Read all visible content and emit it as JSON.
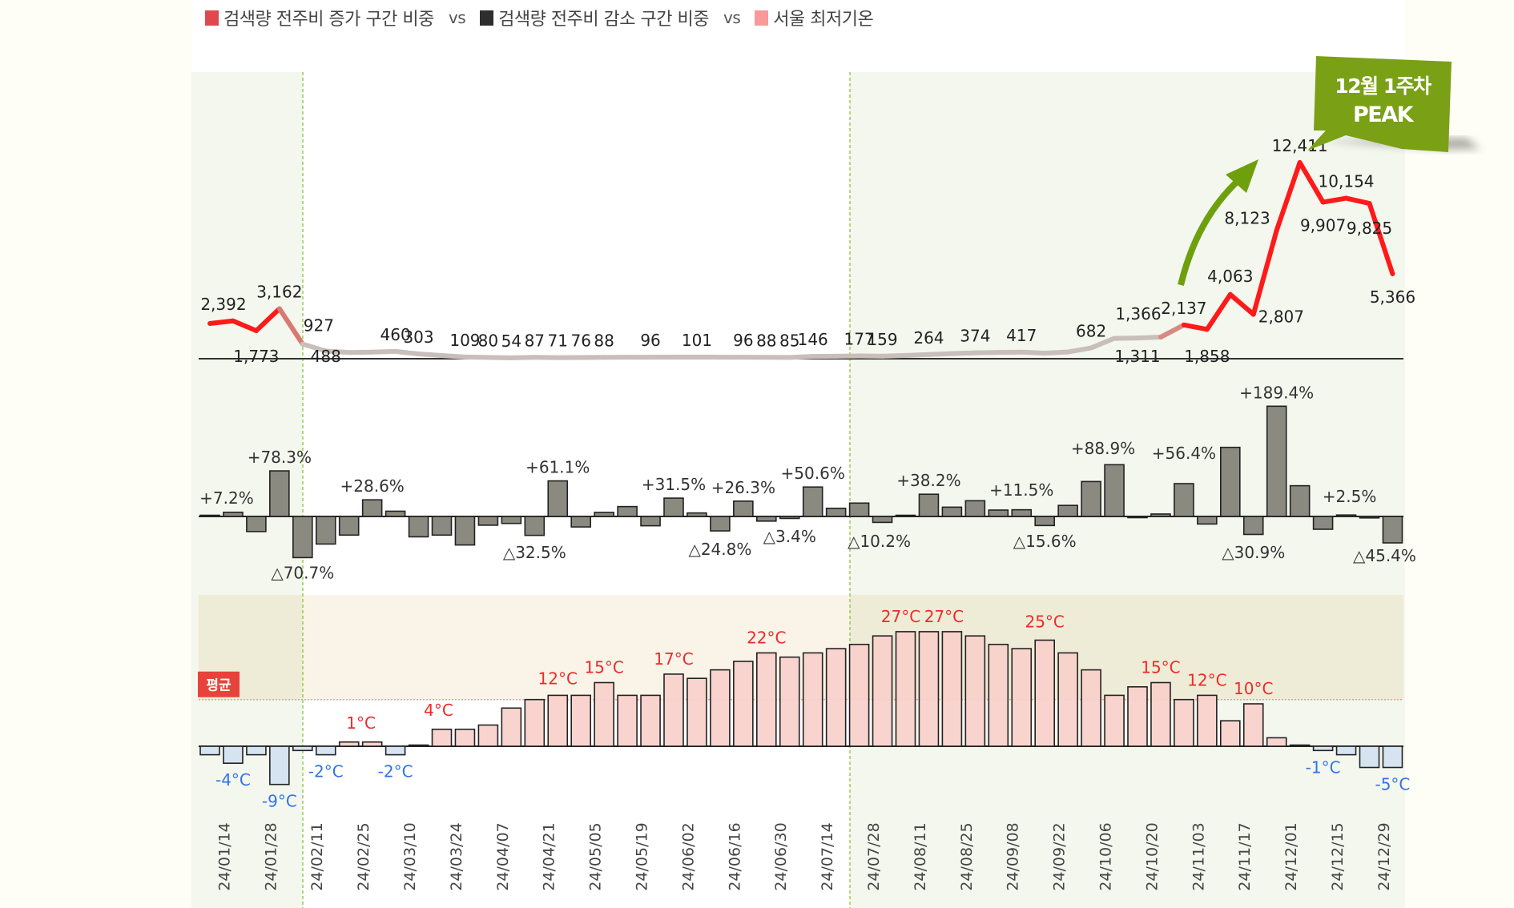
{
  "legend": {
    "items": [
      {
        "label": "검색량 전주비 증가 구간 비중",
        "color": "#e0484f"
      },
      {
        "label": "검색량 전주비 감소 구간 비중",
        "color": "#2e2e2e"
      },
      {
        "label": "서울 최저기온",
        "color": "#f8999a"
      }
    ],
    "separator": "vs"
  },
  "callout": {
    "line1": "12월 1주차",
    "line2": "PEAK",
    "color": "#7aa016"
  },
  "average_badge": "평균",
  "colors": {
    "rise_line": "#ff1a1a",
    "flat_line": "#c9bfba",
    "change_bar": "#8a8a80",
    "warm_bar": "#f9d0cb",
    "cold_bar": "#d3e2f2",
    "warm_label": "#ee2a2a",
    "cold_label": "#2f74e8",
    "shade": "#f4f7ee",
    "warm_band": "#f8f1e4",
    "guide": "#8fc23a"
  },
  "chart_data": [
    {
      "type": "line",
      "title": "검색량",
      "x": [
        "24/01/07",
        "24/01/14",
        "24/01/21",
        "24/01/28",
        "24/02/04",
        "24/02/11",
        "24/02/18",
        "24/02/25",
        "24/03/03",
        "24/03/10",
        "24/03/17",
        "24/03/24",
        "24/03/31",
        "24/04/07",
        "24/04/14",
        "24/04/21",
        "24/04/28",
        "24/05/05",
        "24/05/12",
        "24/05/19",
        "24/05/26",
        "24/06/02",
        "24/06/09",
        "24/06/16",
        "24/06/23",
        "24/06/30",
        "24/07/07",
        "24/07/14",
        "24/07/21",
        "24/07/28",
        "24/08/04",
        "24/08/11",
        "24/08/18",
        "24/08/25",
        "24/09/01",
        "24/09/08",
        "24/09/15",
        "24/09/22",
        "24/09/29",
        "24/10/06",
        "24/10/13",
        "24/10/20",
        "24/10/27",
        "24/11/03",
        "24/11/10",
        "24/11/17",
        "24/11/24",
        "24/12/01",
        "24/12/08",
        "24/12/15",
        "24/12/22",
        "24/12/29"
      ],
      "values": [
        2231,
        2392,
        1773,
        3162,
        927,
        488,
        390,
        420,
        460,
        303,
        200,
        109,
        80,
        54,
        87,
        71,
        76,
        88,
        92,
        96,
        99,
        101,
        98,
        96,
        88,
        85,
        146,
        160,
        177,
        159,
        210,
        264,
        320,
        374,
        400,
        417,
        352,
        426,
        682,
        1288,
        1311,
        1366,
        2137,
        1858,
        4063,
        2807,
        8123,
        12411,
        9907,
        10154,
        9825,
        5366
      ],
      "labels": [
        "",
        "2,392",
        "1,773",
        "3,162",
        "927",
        "488",
        "",
        "",
        "460",
        "303",
        "",
        "109",
        "80",
        "54",
        "87",
        "71",
        "76",
        "88",
        "",
        "96",
        "",
        "101",
        "",
        "96",
        "88",
        "85",
        "146",
        "",
        "177",
        "159",
        "",
        "264",
        "",
        "374",
        "",
        "417",
        "",
        "",
        "682",
        "",
        "1,311",
        "1,366",
        "2,137",
        "1,858",
        "4,063",
        "2,807",
        "8,123",
        "12,411",
        "9,907",
        "10,154",
        "9,825",
        "5,366"
      ],
      "ylim": [
        0,
        12411
      ]
    },
    {
      "type": "bar",
      "title": "검색량 전주비",
      "values": [
        0,
        7.2,
        -25.9,
        78.3,
        -70.7,
        -47.4,
        -32,
        28.6,
        9,
        -35,
        -32,
        -49,
        -15,
        -12,
        -32.5,
        61.1,
        -18,
        7,
        17,
        -16,
        31.5,
        6,
        -24.8,
        26.3,
        -8,
        -3.4,
        50.6,
        14,
        23,
        -10.2,
        2,
        38.2,
        16,
        27,
        11,
        11.5,
        -15.6,
        19,
        60,
        88.9,
        -1,
        4.2,
        56.4,
        -13,
        118.7,
        -30.9,
        189.4,
        52.8,
        -22,
        2.5,
        -2.5,
        -45.4
      ],
      "labels": [
        "",
        "+7.2%",
        "",
        "+78.3%",
        "△70.7%",
        "",
        "",
        "+28.6%",
        "",
        "",
        "",
        "",
        "",
        "",
        "△32.5%",
        "+61.1%",
        "",
        "",
        "",
        "",
        "+31.5%",
        "",
        "△24.8%",
        "+26.3%",
        "",
        "△3.4%",
        "+50.6%",
        "",
        "",
        "△10.2%",
        "",
        "+38.2%",
        "",
        "",
        "",
        "+11.5%",
        "△15.6%",
        "",
        "",
        "+88.9%",
        "",
        "",
        "+56.4%",
        "",
        "",
        "△30.9%",
        "+189.4%",
        "",
        "",
        "+2.5%",
        "",
        "△45.4%"
      ],
      "unit": "%"
    },
    {
      "type": "bar",
      "title": "서울 최저기온",
      "values": [
        -2,
        -4,
        -2,
        -9,
        -1,
        -2,
        1,
        1,
        -2,
        0,
        4,
        4,
        5,
        9,
        11,
        12,
        12,
        15,
        12,
        12,
        17,
        16,
        18,
        20,
        22,
        21,
        22,
        23,
        24,
        26,
        27,
        27,
        27,
        26,
        24,
        23,
        25,
        22,
        18,
        12,
        14,
        15,
        11,
        12,
        6,
        10,
        2,
        0,
        -1,
        -2,
        -5,
        -5
      ],
      "labels": [
        "",
        "-4°C",
        "",
        "-9°C",
        "",
        "-2°C",
        "",
        "1°C",
        "-2°C",
        "",
        "4°C",
        "",
        "",
        "",
        "",
        "12°C",
        "",
        "15°C",
        "",
        "",
        "17°C",
        "",
        "",
        "",
        "22°C",
        "",
        "",
        "",
        "",
        "",
        "27°C",
        "",
        "27°C",
        "",
        "",
        "",
        "25°C",
        "",
        "",
        "",
        "",
        "15°C",
        "",
        "12°C",
        "",
        "10°C",
        "",
        "",
        "-1°C",
        "",
        "",
        "-5°C"
      ],
      "average_label": "평균",
      "average": 11,
      "unit": "°C"
    }
  ],
  "x_tick_labels": [
    "24/01/14",
    "24/01/28",
    "24/02/11",
    "24/02/25",
    "24/03/10",
    "24/03/24",
    "24/04/07",
    "24/04/21",
    "24/05/05",
    "24/05/19",
    "24/06/02",
    "24/06/16",
    "24/06/30",
    "24/07/14",
    "24/07/28",
    "24/08/11",
    "24/08/25",
    "24/09/08",
    "24/09/22",
    "24/10/06",
    "24/10/20",
    "24/11/03",
    "24/11/17",
    "24/12/01",
    "24/12/15",
    "24/12/29"
  ]
}
